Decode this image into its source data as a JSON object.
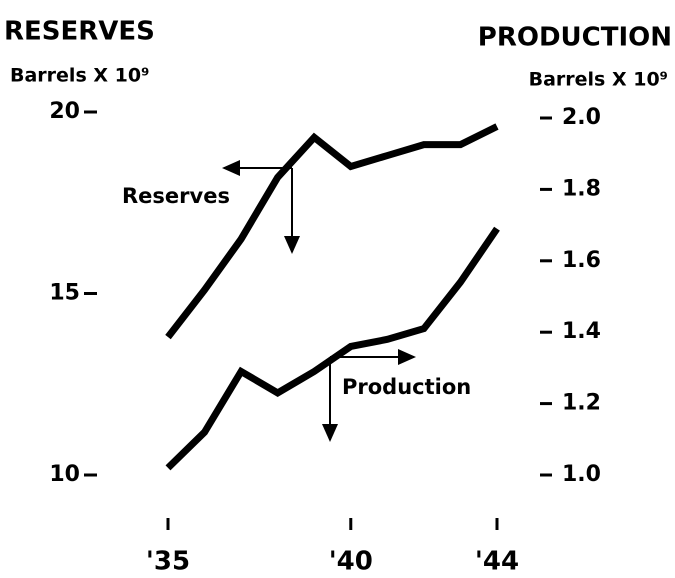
{
  "chart_data": {
    "type": "line",
    "title": "RESERVES",
    "y_label": "Barrels X 10⁹",
    "y2_title": "PRODUCTION",
    "y2_label": "Barrels X 10⁹",
    "x": [
      1935,
      1936,
      1937,
      1938,
      1939,
      1940,
      1941,
      1942,
      1943,
      1944
    ],
    "xlim": [
      1935,
      1944
    ],
    "xticks": [
      {
        "value": 1935,
        "label": "'35"
      },
      {
        "value": 1940,
        "label": "'40"
      },
      {
        "value": 1944,
        "label": "'44"
      }
    ],
    "ylim": [
      10,
      20
    ],
    "yticks": [
      10,
      15,
      20
    ],
    "y2lim": [
      1.0,
      2.0
    ],
    "y2ticks": [
      {
        "value": 1.0,
        "label": "1.0"
      },
      1.2,
      1.4,
      1.6,
      1.8,
      {
        "value": 2.0,
        "label": "2.0"
      }
    ],
    "series": [
      {
        "name": "Reserves",
        "color": "#000000",
        "values": [
          13.8,
          15.1,
          16.5,
          18.2,
          19.3,
          18.5,
          18.8,
          19.1,
          19.1,
          19.6
        ]
      },
      {
        "name": "Production",
        "color": "#000000",
        "axis": "y2",
        "values": [
          1.02,
          1.12,
          1.29,
          1.23,
          1.29,
          1.36,
          1.38,
          1.41,
          1.54,
          1.69
        ]
      }
    ]
  }
}
